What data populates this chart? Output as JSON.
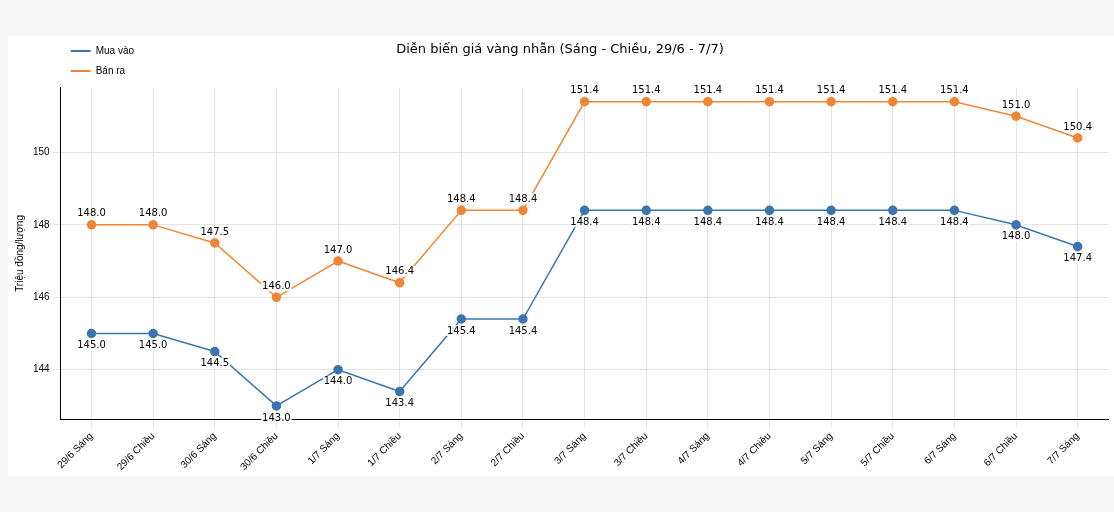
{
  "chart_data": {
    "type": "line",
    "title": "Diễn biến giá vàng nhẫn (Sáng - Chiều, 29/6 - 7/7)",
    "ylabel": "Triệu đồng/lượng",
    "categories": [
      "29/6 Sáng",
      "29/6 Chiều",
      "30/6 Sáng",
      "30/6 Chiều",
      "1/7 Sáng",
      "1/7 Chiều",
      "2/7 Sáng",
      "2/7 Chiều",
      "3/7 Sáng",
      "3/7 Chiều",
      "4/7 Sáng",
      "4/7 Chiều",
      "5/7 Sáng",
      "5/7 Chiều",
      "6/7 Sáng",
      "6/7 Chiều",
      "7/7 Sáng"
    ],
    "series": [
      {
        "name": "Mua vào",
        "color": "#3b75af",
        "values": [
          145.0,
          145.0,
          144.5,
          143.0,
          144.0,
          143.4,
          145.4,
          145.4,
          148.4,
          148.4,
          148.4,
          148.4,
          148.4,
          148.4,
          148.4,
          148.0,
          147.4
        ],
        "value_labels": [
          "145.0",
          "145.0",
          "144.5",
          "143.0",
          "144.0",
          "143.4",
          "145.4",
          "145.4",
          "148.4",
          "148.4",
          "148.4",
          "148.4",
          "148.4",
          "148.4",
          "148.4",
          "148.0",
          "147.4"
        ]
      },
      {
        "name": "Bán ra",
        "color": "#ef8636",
        "values": [
          148.0,
          148.0,
          147.5,
          146.0,
          147.0,
          146.4,
          148.4,
          148.4,
          151.4,
          151.4,
          151.4,
          151.4,
          151.4,
          151.4,
          151.4,
          151.0,
          150.4
        ],
        "value_labels": [
          "148.0",
          "148.0",
          "147.5",
          "146.0",
          "147.0",
          "146.4",
          "148.4",
          "148.4",
          "151.4",
          "151.4",
          "151.4",
          "151.4",
          "151.4",
          "151.4",
          "151.4",
          "151.0",
          "150.4"
        ]
      }
    ],
    "ylim": [
      142.63,
      151.79
    ],
    "yticks": [
      144,
      146,
      148,
      150
    ],
    "grid": true,
    "legend": "top left",
    "marker": "circle",
    "line_style": "solid"
  }
}
